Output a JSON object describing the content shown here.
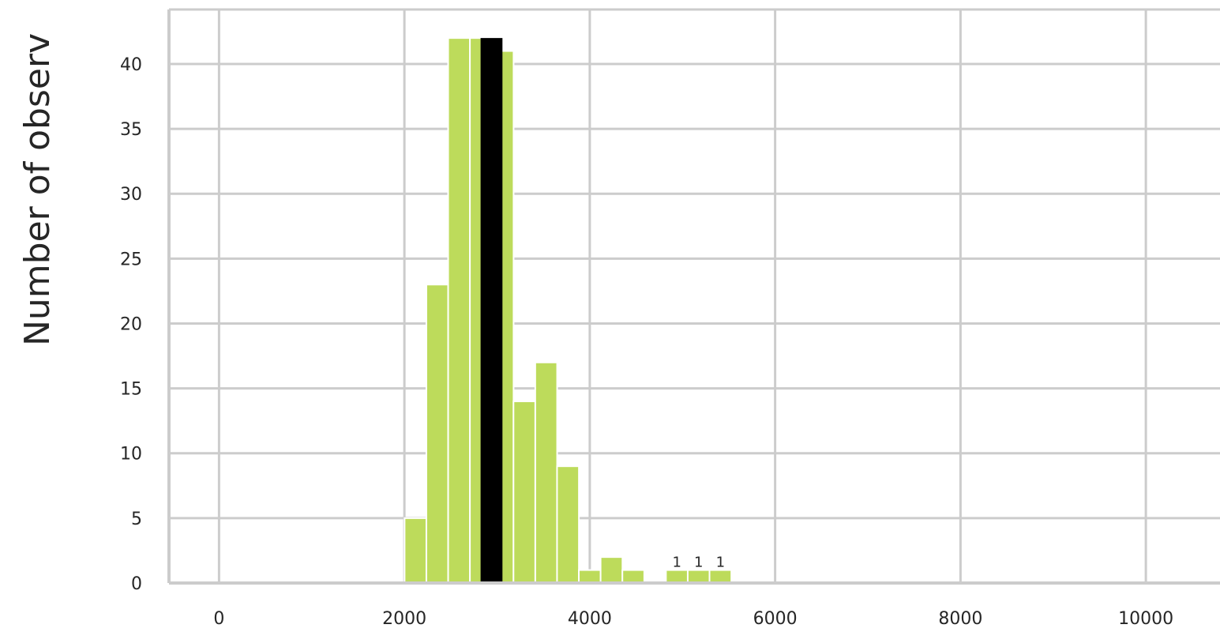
{
  "chart_data": {
    "type": "bar",
    "title": "",
    "xlabel": "",
    "ylabel": "Number of observ",
    "xlim": [
      -540,
      10800
    ],
    "ylim": [
      0,
      44.2
    ],
    "grid": true,
    "x_ticks": [
      "0",
      "2000",
      "4000",
      "6000",
      "8000",
      "10000"
    ],
    "y_ticks": [
      "0",
      "5",
      "10",
      "15",
      "20",
      "25",
      "30",
      "35",
      "40"
    ],
    "bin_width": 236,
    "colors": {
      "bar": "#bddb5b",
      "highlight": "#000000",
      "grid": "#cccccc"
    },
    "bins": [
      {
        "x": 2120,
        "count": 5
      },
      {
        "x": 2355,
        "count": 23
      },
      {
        "x": 2590,
        "count": 42
      },
      {
        "x": 2825,
        "count": 42
      },
      {
        "x": 3060,
        "count": 41
      },
      {
        "x": 3295,
        "count": 14
      },
      {
        "x": 3530,
        "count": 17
      },
      {
        "x": 3765,
        "count": 9
      },
      {
        "x": 4000,
        "count": 1
      },
      {
        "x": 4235,
        "count": 2
      },
      {
        "x": 4470,
        "count": 1
      },
      {
        "x": 4940,
        "count": 1
      },
      {
        "x": 5175,
        "count": 1
      },
      {
        "x": 5410,
        "count": 1
      }
    ],
    "highlight": {
      "x": 2940,
      "count": 42
    },
    "bar_labels": [
      {
        "x": 4940,
        "count": 1,
        "text": "1"
      },
      {
        "x": 5175,
        "count": 1,
        "text": "1"
      },
      {
        "x": 5410,
        "count": 1,
        "text": "1"
      }
    ]
  }
}
